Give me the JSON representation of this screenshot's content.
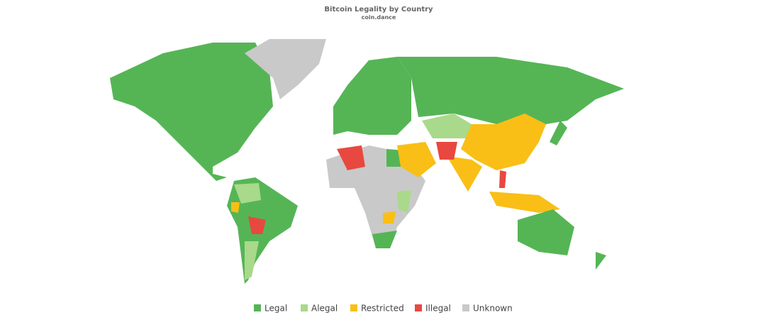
{
  "header": {
    "title": "Bitcoin Legality by Country",
    "subtitle": "coin.dance"
  },
  "legend": [
    {
      "name": "Legal",
      "color": "#55b555"
    },
    {
      "name": "Alegal",
      "color": "#a9d98b"
    },
    {
      "name": "Restricted",
      "color": "#f9bf16"
    },
    {
      "name": "Illegal",
      "color": "#e8483f"
    },
    {
      "name": "Unknown",
      "color": "#c9c9c9"
    }
  ]
}
